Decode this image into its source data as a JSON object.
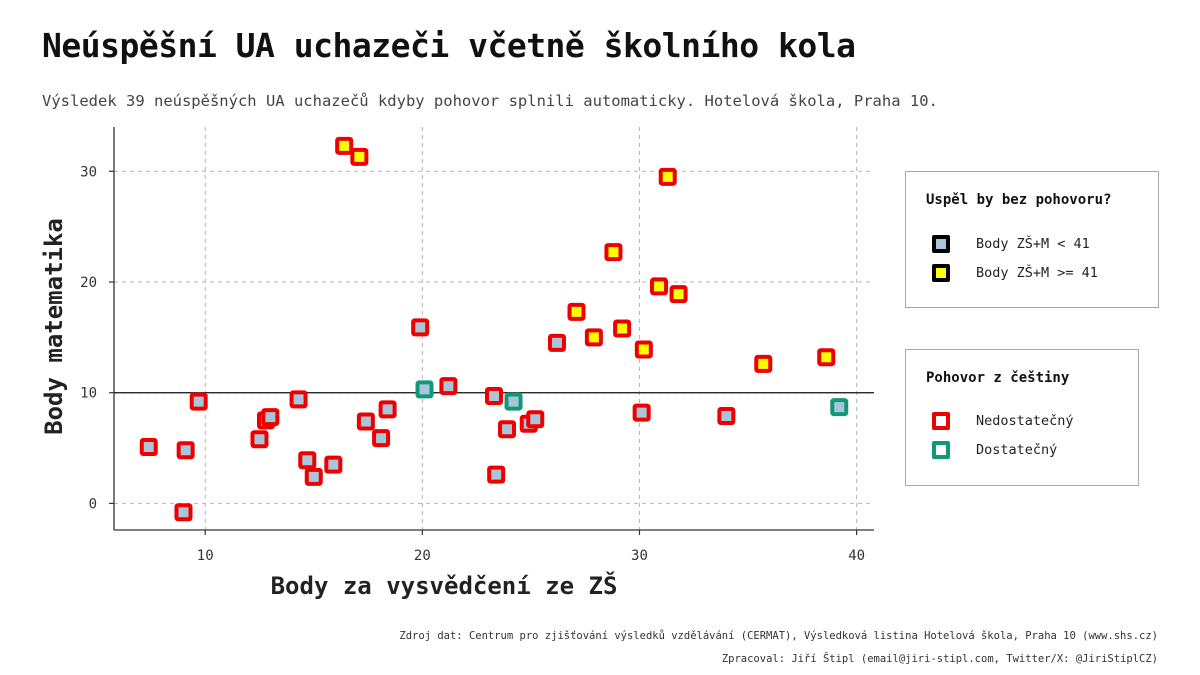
{
  "header": {
    "title": "Neúspěšní UA uchazeči včetně školního kola",
    "subtitle": "Výsledek 39 neúspěšných UA uchazečů kdyby pohovor splnili automaticky. Hotelová škola, Praha 10."
  },
  "footer": {
    "source": "Zdroj dat: Centrum pro zjišťování výsledků vzdělávání (CERMAT), Výsledková listina Hotelová škola, Praha 10 (www.shs.cz)",
    "credit": "Zpracoval: Jiří Štipl (email@jiri-stipl.com, Twitter/X: @JiriStiplCZ)"
  },
  "legend_fill": {
    "title": "Uspěl by bez pohovoru?",
    "items": [
      {
        "label": "Body ZŠ+M < 41",
        "fill": "#a9c6d9",
        "border": "#000000"
      },
      {
        "label": "Body ZŠ+M >= 41",
        "fill": "#ffff00",
        "border": "#000000"
      }
    ]
  },
  "legend_border": {
    "title": "Pohovor z češtiny",
    "items": [
      {
        "label": "Nedostatečný",
        "fill": "#ffffff",
        "border": "#ee0000"
      },
      {
        "label": "Dostatečný",
        "fill": "#ffffff",
        "border": "#119977"
      }
    ]
  },
  "colors": {
    "fill_below": "#a9c6d9",
    "fill_above": "#ffff00",
    "border_fail": "#ee0000",
    "border_pass": "#119977"
  },
  "chart_data": {
    "type": "scatter",
    "xlabel": "Body za vysvědčení ze ZŠ",
    "ylabel": "Body matematika",
    "xlim": [
      5.8,
      40.8
    ],
    "ylim": [
      -2.4,
      34
    ],
    "xticks": [
      10,
      20,
      30,
      40
    ],
    "yticks": [
      0,
      10,
      20,
      30
    ],
    "grid": true,
    "hline": 10,
    "points": [
      {
        "x": 7.4,
        "y": 5.1,
        "above": false,
        "czech": "fail"
      },
      {
        "x": 9.0,
        "y": -0.8,
        "above": false,
        "czech": "fail"
      },
      {
        "x": 9.1,
        "y": 4.8,
        "above": false,
        "czech": "fail"
      },
      {
        "x": 9.7,
        "y": 9.2,
        "above": false,
        "czech": "fail"
      },
      {
        "x": 12.5,
        "y": 5.8,
        "above": false,
        "czech": "fail"
      },
      {
        "x": 12.8,
        "y": 7.5,
        "above": false,
        "czech": "fail"
      },
      {
        "x": 13.0,
        "y": 7.8,
        "above": false,
        "czech": "fail"
      },
      {
        "x": 14.3,
        "y": 9.4,
        "above": false,
        "czech": "fail"
      },
      {
        "x": 14.7,
        "y": 3.9,
        "above": false,
        "czech": "fail"
      },
      {
        "x": 15.0,
        "y": 2.4,
        "above": false,
        "czech": "fail"
      },
      {
        "x": 15.9,
        "y": 3.5,
        "above": false,
        "czech": "fail"
      },
      {
        "x": 16.4,
        "y": 32.3,
        "above": true,
        "czech": "fail"
      },
      {
        "x": 17.1,
        "y": 31.3,
        "above": true,
        "czech": "fail"
      },
      {
        "x": 17.4,
        "y": 7.4,
        "above": false,
        "czech": "fail"
      },
      {
        "x": 18.1,
        "y": 5.9,
        "above": false,
        "czech": "fail"
      },
      {
        "x": 18.4,
        "y": 8.5,
        "above": false,
        "czech": "fail"
      },
      {
        "x": 19.9,
        "y": 15.9,
        "above": false,
        "czech": "fail"
      },
      {
        "x": 20.1,
        "y": 10.3,
        "above": false,
        "czech": "pass"
      },
      {
        "x": 21.2,
        "y": 10.6,
        "above": false,
        "czech": "fail"
      },
      {
        "x": 23.3,
        "y": 9.7,
        "above": false,
        "czech": "fail"
      },
      {
        "x": 23.4,
        "y": 2.6,
        "above": false,
        "czech": "fail"
      },
      {
        "x": 23.9,
        "y": 6.7,
        "above": false,
        "czech": "fail"
      },
      {
        "x": 24.2,
        "y": 9.2,
        "above": false,
        "czech": "pass"
      },
      {
        "x": 24.9,
        "y": 7.2,
        "above": false,
        "czech": "fail"
      },
      {
        "x": 25.2,
        "y": 7.6,
        "above": false,
        "czech": "fail"
      },
      {
        "x": 26.2,
        "y": 14.5,
        "above": false,
        "czech": "fail"
      },
      {
        "x": 27.1,
        "y": 17.3,
        "above": true,
        "czech": "fail"
      },
      {
        "x": 27.9,
        "y": 15.0,
        "above": true,
        "czech": "fail"
      },
      {
        "x": 28.8,
        "y": 22.7,
        "above": true,
        "czech": "fail"
      },
      {
        "x": 29.2,
        "y": 15.8,
        "above": true,
        "czech": "fail"
      },
      {
        "x": 30.1,
        "y": 8.2,
        "above": false,
        "czech": "fail"
      },
      {
        "x": 30.2,
        "y": 13.9,
        "above": true,
        "czech": "fail"
      },
      {
        "x": 30.9,
        "y": 19.6,
        "above": true,
        "czech": "fail"
      },
      {
        "x": 31.3,
        "y": 29.5,
        "above": true,
        "czech": "fail"
      },
      {
        "x": 31.8,
        "y": 18.9,
        "above": true,
        "czech": "fail"
      },
      {
        "x": 34.0,
        "y": 7.9,
        "above": false,
        "czech": "fail"
      },
      {
        "x": 35.7,
        "y": 12.6,
        "above": true,
        "czech": "fail"
      },
      {
        "x": 38.6,
        "y": 13.2,
        "above": true,
        "czech": "fail"
      },
      {
        "x": 39.2,
        "y": 8.7,
        "above": false,
        "czech": "pass"
      }
    ]
  }
}
